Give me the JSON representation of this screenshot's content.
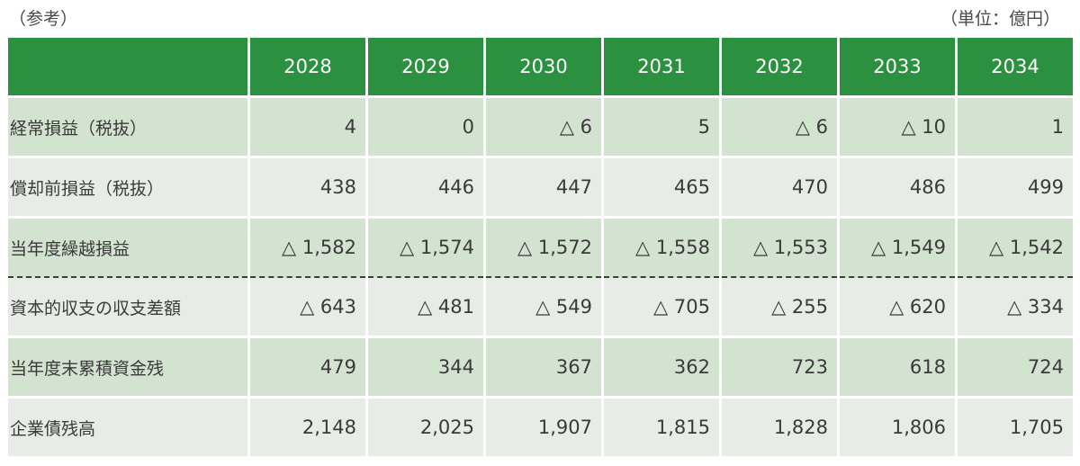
{
  "caption_left": "（参考）",
  "caption_right": "（単位：億円）",
  "table": {
    "corner": "",
    "years": [
      "2028",
      "2029",
      "2030",
      "2031",
      "2032",
      "2033",
      "2034"
    ],
    "rows": [
      {
        "label": "経常損益（税抜）",
        "values": [
          "4",
          "0",
          "△ 6",
          "5",
          "△ 6",
          "△ 10",
          "1"
        ]
      },
      {
        "label": "償却前損益（税抜）",
        "values": [
          "438",
          "446",
          "447",
          "465",
          "470",
          "486",
          "499"
        ]
      },
      {
        "label": "当年度繰越損益",
        "values": [
          "△ 1,582",
          "△ 1,574",
          "△ 1,572",
          "△ 1,558",
          "△ 1,553",
          "△ 1,549",
          "△ 1,542"
        ]
      },
      {
        "label": "資本的収支の収支差額",
        "values": [
          "△ 643",
          "△ 481",
          "△ 549",
          "△ 705",
          "△ 255",
          "△ 620",
          "△ 334"
        ]
      },
      {
        "label": "当年度末累積資金残",
        "values": [
          "479",
          "344",
          "367",
          "362",
          "723",
          "618",
          "724"
        ]
      },
      {
        "label": "企業債残高",
        "values": [
          "2,148",
          "2,025",
          "1,907",
          "1,815",
          "1,828",
          "1,806",
          "1,705"
        ]
      }
    ]
  },
  "colors": {
    "header_green": "#2b9140",
    "row_dark": "#d2e3cf",
    "row_light": "#e7ede6"
  }
}
